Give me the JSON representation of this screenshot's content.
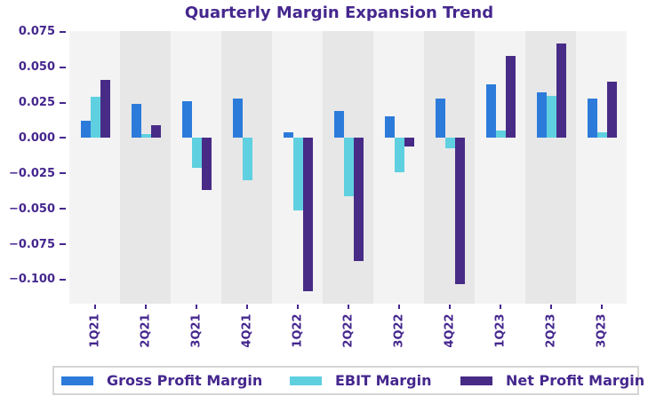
{
  "chart_data": {
    "type": "bar",
    "title": "Quarterly Margin Expansion Trend",
    "categories": [
      "1Q21",
      "2Q21",
      "3Q21",
      "4Q21",
      "1Q22",
      "2Q22",
      "3Q22",
      "4Q22",
      "1Q23",
      "2Q23",
      "3Q23"
    ],
    "series": [
      {
        "name": "Gross Profit Margin",
        "color": "#2c7bdb",
        "values": [
          0.012,
          0.024,
          0.026,
          0.028,
          0.004,
          0.019,
          0.015,
          0.028,
          0.038,
          0.032,
          0.028
        ]
      },
      {
        "name": "EBIT Margin",
        "color": "#5fd0e0",
        "values": [
          0.029,
          0.003,
          -0.021,
          -0.03,
          -0.051,
          -0.041,
          -0.024,
          -0.007,
          0.005,
          0.03,
          0.004
        ]
      },
      {
        "name": "Net Profit Margin",
        "color": "#482b87",
        "values": [
          0.041,
          0.009,
          -0.037,
          0.0,
          -0.108,
          -0.087,
          -0.006,
          -0.103,
          0.058,
          0.067,
          0.04
        ]
      }
    ],
    "xlabel": "",
    "ylabel": "",
    "ylim": [
      -0.117,
      0.0755
    ],
    "yticks": [
      0.075,
      0.05,
      0.025,
      0.0,
      -0.025,
      -0.05,
      -0.075,
      -0.1
    ],
    "ytick_labels": [
      "0.075",
      "0.050",
      "0.025",
      "0.000",
      "−0.025",
      "−0.050",
      "−0.075",
      "−0.100"
    ],
    "grid": false,
    "legend_position": "bottom",
    "colors": {
      "text": "#45278e",
      "band_light": "#f3f3f3",
      "band_dark": "#e7e7e7",
      "legend_border": "#d5d5d5",
      "background": "#ffffff"
    }
  }
}
